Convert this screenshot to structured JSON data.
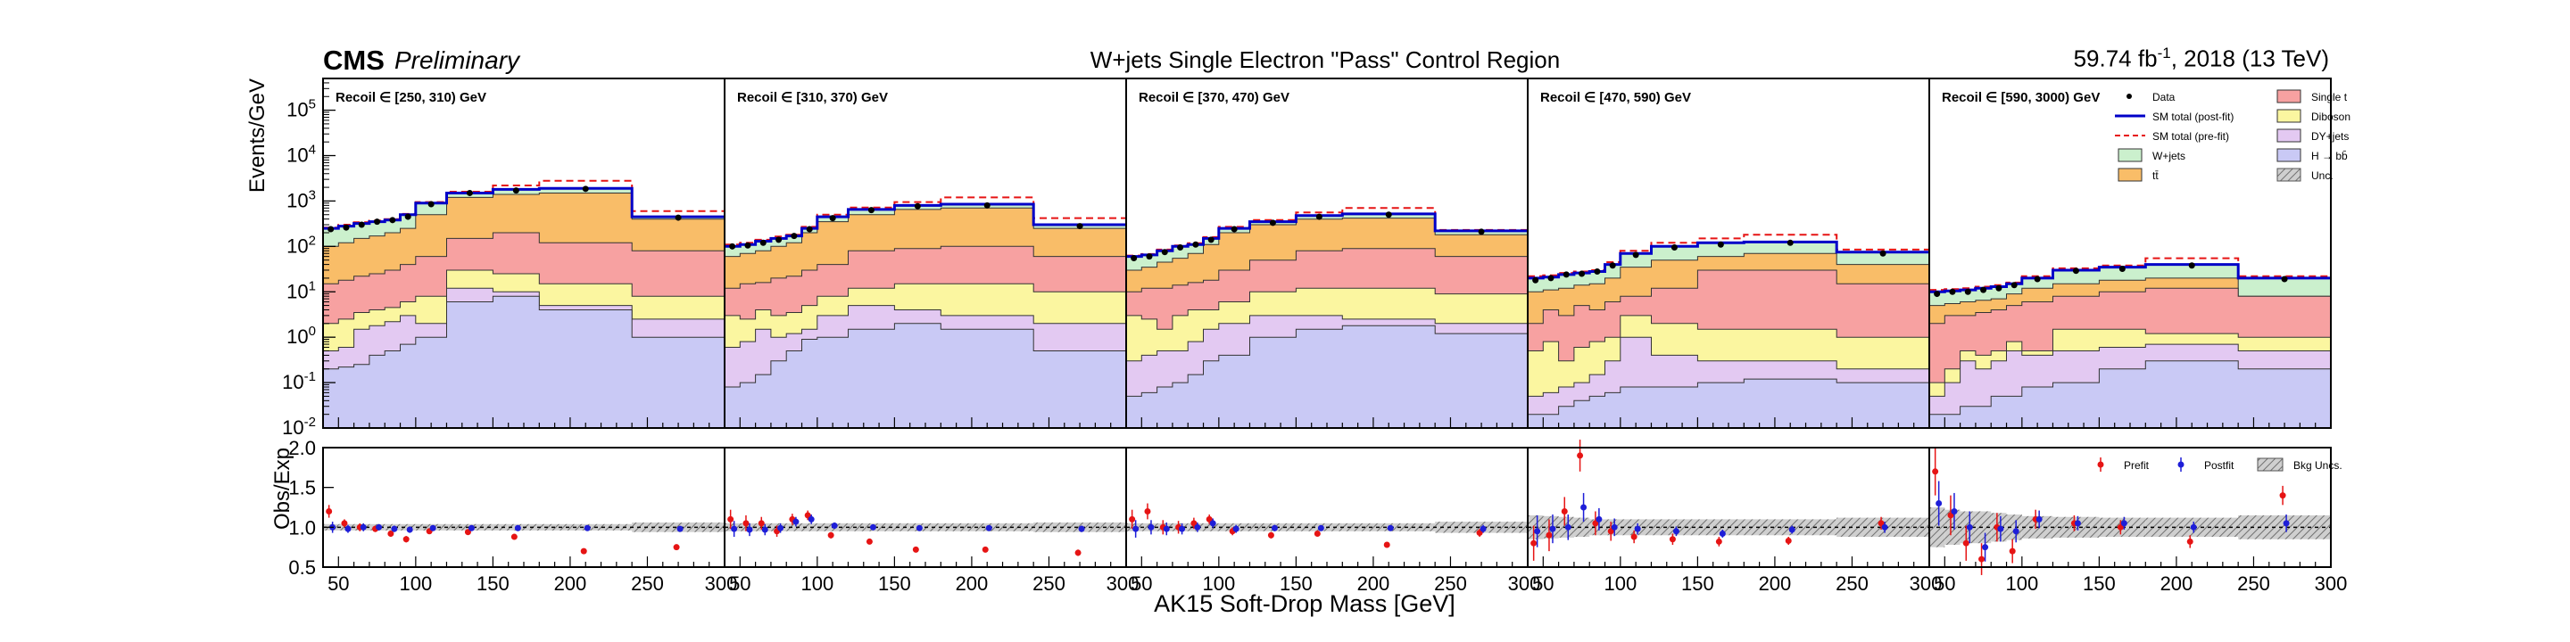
{
  "header": {
    "experiment": "CMS",
    "status": "Preliminary",
    "title": "W+jets Single Electron \"Pass\" Control Region",
    "lumi_prefix": "59.74 fb",
    "lumi_exp": "-1",
    "lumi_suffix": ", 2018 (13 TeV)"
  },
  "colors": {
    "single_t": "#f7a1a1",
    "diboson": "#fbf6a0",
    "dyjets": "#e3c9f2",
    "wjets": "#cbf0cd",
    "ttbar": "#f9bd68",
    "hbb": "#c9c9f5",
    "sm_post": "#0000c8",
    "sm_pre": "#e61414",
    "data": "#000000",
    "prefit": "#e61414",
    "postfit": "#1e1ed8",
    "unc": "#9a9a9a"
  },
  "chart_data": {
    "type": "area",
    "xlabel": "AK15 Soft-Drop Mass [GeV]",
    "ylabel": "Events/GeV",
    "ratio_ylabel": "Obs/Exp",
    "yscale": "log",
    "ylim": [
      0.01,
      500000
    ],
    "ratio_ylim": [
      0.5,
      2.0
    ],
    "xlim": [
      40,
      300
    ],
    "bin_edges": [
      40,
      50,
      60,
      70,
      80,
      90,
      100,
      120,
      150,
      180,
      240,
      300
    ],
    "x_ticks": [
      50,
      100,
      150,
      200,
      250,
      300
    ],
    "x_tick_labels_shared_edge": [
      "300",
      "50"
    ],
    "y_ticks": [
      {
        "v": 0.01,
        "m": "10",
        "e": "-2"
      },
      {
        "v": 0.1,
        "m": "10",
        "e": "-1"
      },
      {
        "v": 1,
        "m": "10",
        "e": "0"
      },
      {
        "v": 10,
        "m": "10",
        "e": "1"
      },
      {
        "v": 100,
        "m": "10",
        "e": "2"
      },
      {
        "v": 1000,
        "m": "10",
        "e": "3"
      },
      {
        "v": 10000,
        "m": "10",
        "e": "4"
      },
      {
        "v": 100000,
        "m": "10",
        "e": "5"
      }
    ],
    "ratio_ticks": [
      "0.5",
      "1.0",
      "1.5",
      "2.0"
    ],
    "stack_order": [
      "hbb",
      "dyjets",
      "diboson",
      "single_t",
      "ttbar",
      "wjets"
    ],
    "legend": [
      {
        "key": "data",
        "label": "Data",
        "type": "marker"
      },
      {
        "key": "single_t",
        "label": "Single t",
        "type": "box"
      },
      {
        "key": "sm_post",
        "label": "SM total (post-fit)",
        "type": "solid"
      },
      {
        "key": "diboson",
        "label": "Diboson",
        "type": "box"
      },
      {
        "key": "sm_pre",
        "label": "SM total (pre-fit)",
        "type": "dashed"
      },
      {
        "key": "dyjets",
        "label": "DY+jets",
        "type": "box"
      },
      {
        "key": "wjets",
        "label": "W+jets",
        "type": "box"
      },
      {
        "key": "hbb",
        "label": "H → bb̄",
        "type": "box"
      },
      {
        "key": "ttbar",
        "label": "tt̄",
        "type": "box"
      },
      {
        "key": "unc",
        "label": "Unc.",
        "type": "hatch"
      }
    ],
    "ratio_legend": [
      {
        "key": "prefit",
        "label": "Prefit"
      },
      {
        "key": "postfit",
        "label": "Postfit"
      },
      {
        "key": "unc",
        "label": "Bkg Uncs."
      }
    ],
    "panels": [
      {
        "label": "Recoil ∈ [250, 310) GeV",
        "stack": {
          "hbb": [
            0.2,
            0.22,
            0.25,
            0.4,
            0.5,
            0.7,
            1,
            6,
            8,
            4,
            1
          ],
          "dyjets": [
            0.5,
            0.6,
            1.5,
            1.8,
            2.2,
            3,
            2,
            12,
            10,
            5,
            2.5
          ],
          "diboson": [
            2,
            2.5,
            3.5,
            4,
            4.5,
            6,
            8,
            30,
            25,
            15,
            8
          ],
          "single_t": [
            15,
            18,
            22,
            25,
            30,
            40,
            60,
            150,
            200,
            120,
            80
          ],
          "ttbar": [
            100,
            120,
            150,
            170,
            200,
            250,
            500,
            1200,
            1400,
            1500,
            400
          ],
          "wjets": [
            250,
            280,
            320,
            350,
            380,
            500,
            900,
            1500,
            1800,
            1900,
            450
          ]
        },
        "sm_post": [
          250,
          280,
          320,
          350,
          380,
          500,
          900,
          1500,
          1800,
          1900,
          450
        ],
        "sm_pre": [
          260,
          300,
          340,
          370,
          400,
          520,
          950,
          1600,
          2200,
          2800,
          600
        ],
        "data": [
          240,
          260,
          300,
          350,
          380,
          450,
          850,
          1500,
          1700,
          1850,
          430
        ],
        "ratio_pre": [
          1.2,
          1.05,
          1.0,
          0.98,
          0.92,
          0.85,
          0.95,
          0.94,
          0.88,
          0.7,
          0.75
        ],
        "ratio_post": [
          1.0,
          0.98,
          1.0,
          1.0,
          0.98,
          0.97,
          0.99,
          0.99,
          0.99,
          0.99,
          0.98
        ],
        "ratio_pre_err": [
          0.08,
          0.05,
          0.05,
          0.04,
          0.04,
          0.04,
          0.03,
          0.02,
          0.02,
          0.02,
          0.03
        ],
        "ratio_post_err": [
          0.07,
          0.05,
          0.05,
          0.04,
          0.04,
          0.04,
          0.03,
          0.02,
          0.02,
          0.02,
          0.03
        ],
        "unc": [
          0.04,
          0.04,
          0.04,
          0.04,
          0.04,
          0.04,
          0.04,
          0.04,
          0.04,
          0.04,
          0.06
        ]
      },
      {
        "label": "Recoil ∈ [310, 370) GeV",
        "stack": {
          "hbb": [
            0.08,
            0.1,
            0.15,
            0.3,
            0.5,
            0.9,
            1,
            1.5,
            2,
            1.5,
            0.5
          ],
          "dyjets": [
            0.6,
            0.8,
            1.5,
            1,
            1.2,
            1.5,
            3,
            5,
            4,
            3,
            2
          ],
          "diboson": [
            3,
            2.5,
            4,
            3,
            3.5,
            5,
            8,
            12,
            15,
            15,
            10
          ],
          "single_t": [
            12,
            15,
            16,
            20,
            22,
            30,
            40,
            80,
            90,
            100,
            60
          ],
          "ttbar": [
            60,
            70,
            80,
            100,
            120,
            200,
            350,
            500,
            650,
            700,
            250
          ],
          "wjets": [
            100,
            110,
            130,
            150,
            170,
            250,
            450,
            650,
            800,
            850,
            300
          ]
        },
        "sm_post": [
          100,
          110,
          130,
          150,
          170,
          250,
          450,
          650,
          800,
          850,
          300
        ],
        "sm_pre": [
          110,
          120,
          140,
          165,
          180,
          270,
          500,
          720,
          950,
          1200,
          420
        ],
        "data": [
          100,
          105,
          120,
          140,
          170,
          240,
          420,
          630,
          770,
          800,
          280
        ],
        "ratio_pre": [
          1.1,
          1.05,
          1.05,
          0.95,
          1.1,
          1.15,
          0.9,
          0.82,
          0.72,
          0.72,
          0.68
        ],
        "ratio_post": [
          0.98,
          0.97,
          0.97,
          0.99,
          1.07,
          1.1,
          1.02,
          1.0,
          0.99,
          0.99,
          0.98
        ],
        "ratio_pre_err": [
          0.12,
          0.1,
          0.08,
          0.07,
          0.07,
          0.06,
          0.04,
          0.03,
          0.03,
          0.02,
          0.04
        ],
        "ratio_post_err": [
          0.1,
          0.08,
          0.07,
          0.06,
          0.06,
          0.06,
          0.04,
          0.03,
          0.03,
          0.02,
          0.04
        ],
        "unc": [
          0.05,
          0.05,
          0.05,
          0.05,
          0.05,
          0.05,
          0.05,
          0.05,
          0.05,
          0.05,
          0.06
        ]
      },
      {
        "label": "Recoil ∈ [370, 470) GeV",
        "stack": {
          "hbb": [
            0.05,
            0.06,
            0.08,
            0.1,
            0.15,
            0.3,
            0.4,
            1,
            1.5,
            1.8,
            1.2
          ],
          "dyjets": [
            0.3,
            0.4,
            0.5,
            0.5,
            0.8,
            1.5,
            2,
            3,
            3,
            2.5,
            2
          ],
          "diboson": [
            3,
            2.5,
            1.5,
            3,
            4,
            4,
            6,
            10,
            12,
            12,
            9
          ],
          "single_t": [
            10,
            12,
            12,
            14,
            16,
            18,
            30,
            50,
            80,
            90,
            60
          ],
          "ttbar": [
            30,
            35,
            45,
            55,
            70,
            110,
            200,
            300,
            400,
            420,
            180
          ],
          "wjets": [
            60,
            65,
            80,
            100,
            110,
            150,
            250,
            350,
            480,
            520,
            220
          ]
        },
        "sm_post": [
          60,
          65,
          80,
          100,
          110,
          150,
          250,
          350,
          480,
          520,
          220
        ],
        "sm_pre": [
          63,
          68,
          85,
          105,
          118,
          160,
          270,
          380,
          560,
          700,
          230
        ],
        "data": [
          55,
          60,
          75,
          95,
          110,
          140,
          240,
          330,
          450,
          500,
          210
        ],
        "ratio_pre": [
          1.1,
          1.2,
          1.0,
          1.0,
          1.05,
          1.1,
          0.95,
          0.9,
          0.92,
          0.78,
          0.93
        ],
        "ratio_post": [
          0.98,
          1.0,
          0.98,
          0.98,
          1.0,
          1.05,
          0.98,
          0.99,
          0.99,
          0.99,
          0.98
        ],
        "ratio_pre_err": [
          0.12,
          0.1,
          0.09,
          0.08,
          0.07,
          0.06,
          0.05,
          0.04,
          0.03,
          0.03,
          0.05
        ],
        "ratio_post_err": [
          0.11,
          0.09,
          0.08,
          0.07,
          0.06,
          0.06,
          0.05,
          0.04,
          0.03,
          0.03,
          0.05
        ],
        "unc": [
          0.05,
          0.05,
          0.05,
          0.05,
          0.05,
          0.05,
          0.05,
          0.05,
          0.05,
          0.05,
          0.07
        ]
      },
      {
        "label": "Recoil ∈ [470, 590) GeV",
        "stack": {
          "hbb": [
            0.02,
            0.02,
            0.03,
            0.04,
            0.05,
            0.06,
            0.08,
            0.08,
            0.1,
            0.12,
            0.1
          ],
          "dyjets": [
            0.05,
            0.06,
            0.08,
            0.1,
            0.15,
            0.3,
            1,
            0.4,
            0.3,
            0.3,
            0.2
          ],
          "diboson": [
            0.5,
            0.8,
            0.3,
            0.6,
            0.8,
            1,
            3,
            2,
            1.5,
            1.5,
            1
          ],
          "single_t": [
            2,
            4,
            3,
            5,
            4,
            6,
            8,
            12,
            30,
            30,
            15
          ],
          "ttbar": [
            10,
            11,
            12,
            14,
            15,
            20,
            35,
            50,
            60,
            70,
            40
          ],
          "wjets": [
            20,
            21,
            24,
            26,
            28,
            40,
            70,
            100,
            120,
            125,
            75
          ]
        },
        "sm_post": [
          20,
          21,
          24,
          26,
          28,
          40,
          70,
          100,
          120,
          125,
          75
        ],
        "sm_pre": [
          22,
          23,
          26,
          28,
          30,
          45,
          80,
          120,
          150,
          180,
          85
        ],
        "data": [
          18,
          20,
          24,
          25,
          28,
          38,
          65,
          95,
          110,
          120,
          70
        ],
        "ratio_pre": [
          0.8,
          0.9,
          1.2,
          1.9,
          1.05,
          0.95,
          0.88,
          0.85,
          0.82,
          0.83,
          1.05
        ],
        "ratio_post": [
          0.95,
          0.98,
          1.0,
          1.25,
          1.1,
          1.0,
          0.98,
          0.95,
          0.92,
          0.97,
          1.0
        ],
        "ratio_pre_err": [
          0.22,
          0.2,
          0.18,
          0.2,
          0.15,
          0.12,
          0.08,
          0.07,
          0.06,
          0.05,
          0.08
        ],
        "ratio_post_err": [
          0.2,
          0.18,
          0.16,
          0.18,
          0.14,
          0.11,
          0.07,
          0.06,
          0.05,
          0.05,
          0.07
        ],
        "unc": [
          0.15,
          0.14,
          0.13,
          0.12,
          0.1,
          0.1,
          0.1,
          0.1,
          0.1,
          0.1,
          0.12
        ]
      },
      {
        "label": "Recoil ∈ [590, 3000) GeV",
        "stack": {
          "hbb": [
            0.02,
            0.02,
            0.03,
            0.03,
            0.05,
            0.05,
            0.08,
            0.1,
            0.2,
            0.3,
            0.2
          ],
          "dyjets": [
            0.05,
            0.1,
            0.3,
            0.2,
            0.3,
            0.5,
            0.4,
            0.5,
            0.6,
            0.7,
            0.5
          ],
          "diboson": [
            0.1,
            0.2,
            0.5,
            0.4,
            0.5,
            0.8,
            0.5,
            1.5,
            1.5,
            1.2,
            1
          ],
          "single_t": [
            2,
            3,
            3,
            3.5,
            4,
            5,
            6,
            8,
            10,
            12,
            8
          ],
          "ttbar": [
            5,
            5.5,
            6,
            6.5,
            7,
            9,
            12,
            15,
            18,
            20,
            8
          ],
          "wjets": [
            10,
            10.5,
            11,
            12,
            13,
            15,
            20,
            30,
            35,
            40,
            20
          ]
        },
        "sm_post": [
          10,
          10.5,
          11,
          12,
          13,
          15,
          20,
          30,
          35,
          40,
          20
        ],
        "sm_pre": [
          11,
          11.5,
          12,
          13,
          14,
          16,
          22,
          33,
          38,
          55,
          22
        ],
        "data": [
          9,
          10,
          10,
          11,
          12,
          14,
          19,
          29,
          32,
          38,
          19
        ],
        "ratio_pre": [
          1.7,
          1.15,
          0.8,
          0.6,
          1.0,
          0.7,
          1.1,
          1.05,
          1.0,
          0.82,
          1.4
        ],
        "ratio_post": [
          1.3,
          1.2,
          1.0,
          0.75,
          0.98,
          0.95,
          1.1,
          1.05,
          1.05,
          1.0,
          1.05
        ],
        "ratio_pre_err": [
          0.3,
          0.25,
          0.22,
          0.2,
          0.18,
          0.15,
          0.12,
          0.1,
          0.09,
          0.08,
          0.12
        ],
        "ratio_post_err": [
          0.28,
          0.23,
          0.2,
          0.18,
          0.16,
          0.14,
          0.11,
          0.09,
          0.08,
          0.07,
          0.11
        ],
        "unc": [
          0.25,
          0.22,
          0.2,
          0.2,
          0.18,
          0.16,
          0.14,
          0.13,
          0.12,
          0.12,
          0.15
        ]
      }
    ]
  }
}
